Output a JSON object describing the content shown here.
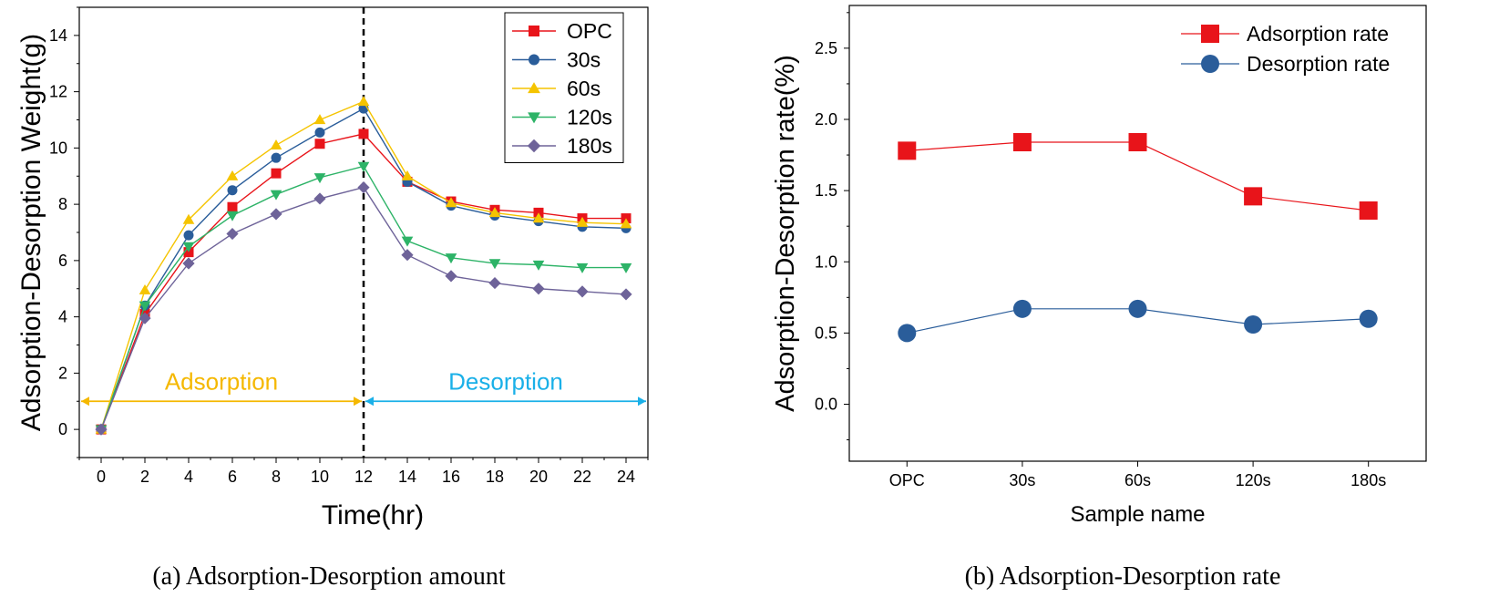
{
  "chart_data": [
    {
      "type": "line",
      "caption": "(a) Adsorption-Desorption amount",
      "xlabel": "Time(hr)",
      "ylabel": "Adsorption-Desorption Weight(g)",
      "xlim": [
        -1,
        25
      ],
      "ylim": [
        -1,
        15
      ],
      "x_ticks": [
        0,
        2,
        4,
        6,
        8,
        10,
        12,
        14,
        16,
        18,
        20,
        22,
        24
      ],
      "y_ticks": [
        0,
        2,
        4,
        6,
        8,
        10,
        12,
        14
      ],
      "x": [
        0,
        2,
        4,
        6,
        8,
        10,
        12,
        14,
        16,
        18,
        20,
        22,
        24
      ],
      "series": [
        {
          "name": "OPC",
          "color": "#e8141a",
          "marker": "square",
          "values": [
            0.0,
            4.1,
            6.3,
            7.9,
            9.1,
            10.15,
            10.5,
            8.8,
            8.1,
            7.8,
            7.7,
            7.5,
            7.5
          ]
        },
        {
          "name": "30s",
          "color": "#2a5d9a",
          "marker": "circle",
          "values": [
            0.0,
            4.4,
            6.9,
            8.5,
            9.65,
            10.55,
            11.4,
            8.8,
            7.95,
            7.6,
            7.4,
            7.2,
            7.15
          ]
        },
        {
          "name": "60s",
          "color": "#f5c400",
          "marker": "triangle-up",
          "values": [
            0.0,
            4.95,
            7.45,
            9.0,
            10.1,
            11.0,
            11.65,
            9.0,
            8.05,
            7.7,
            7.5,
            7.35,
            7.3
          ]
        },
        {
          "name": "120s",
          "color": "#2db367",
          "marker": "triangle-down",
          "values": [
            0.0,
            4.4,
            6.5,
            7.6,
            8.35,
            8.95,
            9.35,
            6.7,
            6.1,
            5.9,
            5.85,
            5.75,
            5.75
          ]
        },
        {
          "name": "180s",
          "color": "#6e6399",
          "marker": "diamond",
          "values": [
            0.0,
            3.95,
            5.9,
            6.95,
            7.65,
            8.2,
            8.6,
            6.2,
            5.45,
            5.2,
            5.0,
            4.9,
            4.8
          ]
        }
      ],
      "divider_x": 12,
      "annotations": [
        {
          "text": "Adsorption",
          "color": "#f5b800",
          "from": -1,
          "to": 12,
          "arrow_y": 1.0,
          "text_y": 1.8
        },
        {
          "text": "Desorption",
          "color": "#1ab0e8",
          "from": 12,
          "to": 25,
          "arrow_y": 1.0,
          "text_y": 1.8
        }
      ],
      "legend": "top-right"
    },
    {
      "type": "line",
      "caption": "(b) Adsorption-Desorption rate",
      "xlabel": "Sample name",
      "ylabel": "Adsorption-Desorption rate(%)",
      "categories": [
        "OPC",
        "30s",
        "60s",
        "120s",
        "180s"
      ],
      "ylim": [
        -0.4,
        2.8
      ],
      "y_ticks": [
        0.0,
        0.5,
        1.0,
        1.5,
        2.0,
        2.5
      ],
      "y_tick_labels": [
        "0.0",
        "0.5",
        "1.0",
        "1.5",
        "2.0",
        "2.5"
      ],
      "series": [
        {
          "name": "Adsorption rate",
          "color": "#e8141a",
          "marker": "square",
          "values": [
            1.78,
            1.84,
            1.84,
            1.46,
            1.36
          ]
        },
        {
          "name": "Desorption rate",
          "color": "#2a5d9a",
          "marker": "circle",
          "values": [
            0.5,
            0.67,
            0.67,
            0.56,
            0.6
          ]
        }
      ],
      "legend": "top-right"
    }
  ]
}
